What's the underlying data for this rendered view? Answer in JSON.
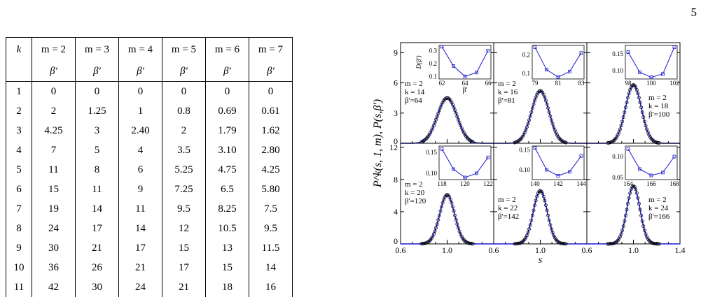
{
  "page_number": "5",
  "table": {
    "corner": "k",
    "headers": [
      "m = 2",
      "m = 3",
      "m = 4",
      "m = 5",
      "m = 6",
      "m = 7"
    ],
    "subheader": "β′",
    "rows": [
      [
        "1",
        "0",
        "0",
        "0",
        "0",
        "0",
        "0"
      ],
      [
        "2",
        "2",
        "1.25",
        "1",
        "0.8",
        "0.69",
        "0.61"
      ],
      [
        "3",
        "4.25",
        "3",
        "2.40",
        "2",
        "1.79",
        "1.62"
      ],
      [
        "4",
        "7",
        "5",
        "4",
        "3.5",
        "3.10",
        "2.80"
      ],
      [
        "5",
        "11",
        "8",
        "6",
        "5.25",
        "4.75",
        "4.25"
      ],
      [
        "6",
        "15",
        "11",
        "9",
        "7.25",
        "6.5",
        "5.80"
      ],
      [
        "7",
        "19",
        "14",
        "11",
        "9.5",
        "8.25",
        "7.5"
      ],
      [
        "8",
        "24",
        "17",
        "14",
        "12",
        "10.5",
        "9.5"
      ],
      [
        "9",
        "30",
        "21",
        "17",
        "15",
        "13",
        "11.5"
      ],
      [
        "10",
        "36",
        "26",
        "21",
        "17",
        "15",
        "14"
      ],
      [
        "11",
        "42",
        "30",
        "24",
        "21",
        "18",
        "16"
      ]
    ]
  },
  "chart_data": {
    "type": "line",
    "ylabel": "P^k(s, 1, m), P(s,β')",
    "xlabel": "s",
    "xlim": [
      0.6,
      1.4
    ],
    "ylims": [
      [
        0,
        10
      ],
      [
        0,
        12.5
      ]
    ],
    "xticks": [
      "0.6",
      "1.0",
      "0.6",
      "1.0",
      "0.6",
      "1.0",
      "1.4"
    ],
    "yticks_top": [
      "0",
      "3",
      "6",
      "9"
    ],
    "yticks_bottom": [
      "0",
      "4",
      "8",
      "12"
    ],
    "peak_x": 1.0,
    "panels": [
      {
        "m": "m = 2",
        "k": "k = 14",
        "beta": "β'=64",
        "peak": 4.5,
        "width": 0.084,
        "inset": {
          "x": [
            62,
            63,
            64,
            65,
            66
          ],
          "y": [
            0.33,
            0.18,
            0.1,
            0.13,
            0.3
          ],
          "xticks": [
            "62",
            "64",
            "66"
          ],
          "yticks": [
            "0.1",
            "0.2",
            "0.3"
          ],
          "ylim": [
            0.08,
            0.34
          ],
          "ylabel": "D(β')",
          "xlabel": "β'"
        }
      },
      {
        "m": "m = 2",
        "k": "k = 16",
        "beta": "β'=81",
        "peak": 5.2,
        "width": 0.075,
        "inset": {
          "x": [
            79,
            80,
            81,
            82,
            83
          ],
          "y": [
            0.24,
            0.12,
            0.08,
            0.11,
            0.21
          ],
          "xticks": [
            "79",
            "81",
            "83"
          ],
          "yticks": [
            "0.1",
            "0.2"
          ],
          "ylim": [
            0.07,
            0.25
          ],
          "ylabel": "",
          "xlabel": ""
        }
      },
      {
        "m": "m = 2",
        "k": "k = 18",
        "beta": "β'=100",
        "peak": 5.8,
        "width": 0.068,
        "inset": {
          "x": [
            98,
            99,
            100,
            101,
            102
          ],
          "y": [
            0.155,
            0.095,
            0.08,
            0.09,
            0.17
          ],
          "xticks": [
            "98",
            "100",
            "102"
          ],
          "yticks": [
            "0.10",
            "0.15"
          ],
          "ylim": [
            0.075,
            0.175
          ],
          "ylabel": "",
          "xlabel": ""
        }
      },
      {
        "m": "m = 2",
        "k": "k = 20",
        "beta": "β'=120",
        "peak": 6.1,
        "width": 0.064,
        "inset": {
          "x": [
            118,
            119,
            120,
            121,
            122
          ],
          "y": [
            0.158,
            0.11,
            0.09,
            0.1,
            0.138
          ],
          "xticks": [
            "118",
            "120",
            "122"
          ],
          "yticks": [
            "0.10",
            "0.15"
          ],
          "ylim": [
            0.085,
            0.165
          ],
          "ylabel": "",
          "xlabel": ""
        }
      },
      {
        "m": "m = 2",
        "k": "k = 22",
        "beta": "β'=142",
        "peak": 6.6,
        "width": 0.06,
        "inset": {
          "x": [
            140,
            141,
            142,
            143,
            144
          ],
          "y": [
            0.155,
            0.1,
            0.085,
            0.095,
            0.135
          ],
          "xticks": [
            "140",
            "142",
            "144"
          ],
          "yticks": [
            "0.10",
            "0.15"
          ],
          "ylim": [
            0.075,
            0.16
          ],
          "ylabel": "",
          "xlabel": ""
        }
      },
      {
        "m": "m = 2",
        "k": "k = 24",
        "beta": "β'=166",
        "peak": 7.2,
        "width": 0.056,
        "inset": {
          "x": [
            164,
            165,
            166,
            167,
            168
          ],
          "y": [
            0.118,
            0.07,
            0.055,
            0.062,
            0.1
          ],
          "xticks": [
            "164",
            "166",
            "168"
          ],
          "yticks": [
            "0.05",
            "0.10"
          ],
          "ylim": [
            0.045,
            0.125
          ],
          "ylabel": "",
          "xlabel": ""
        }
      }
    ]
  }
}
